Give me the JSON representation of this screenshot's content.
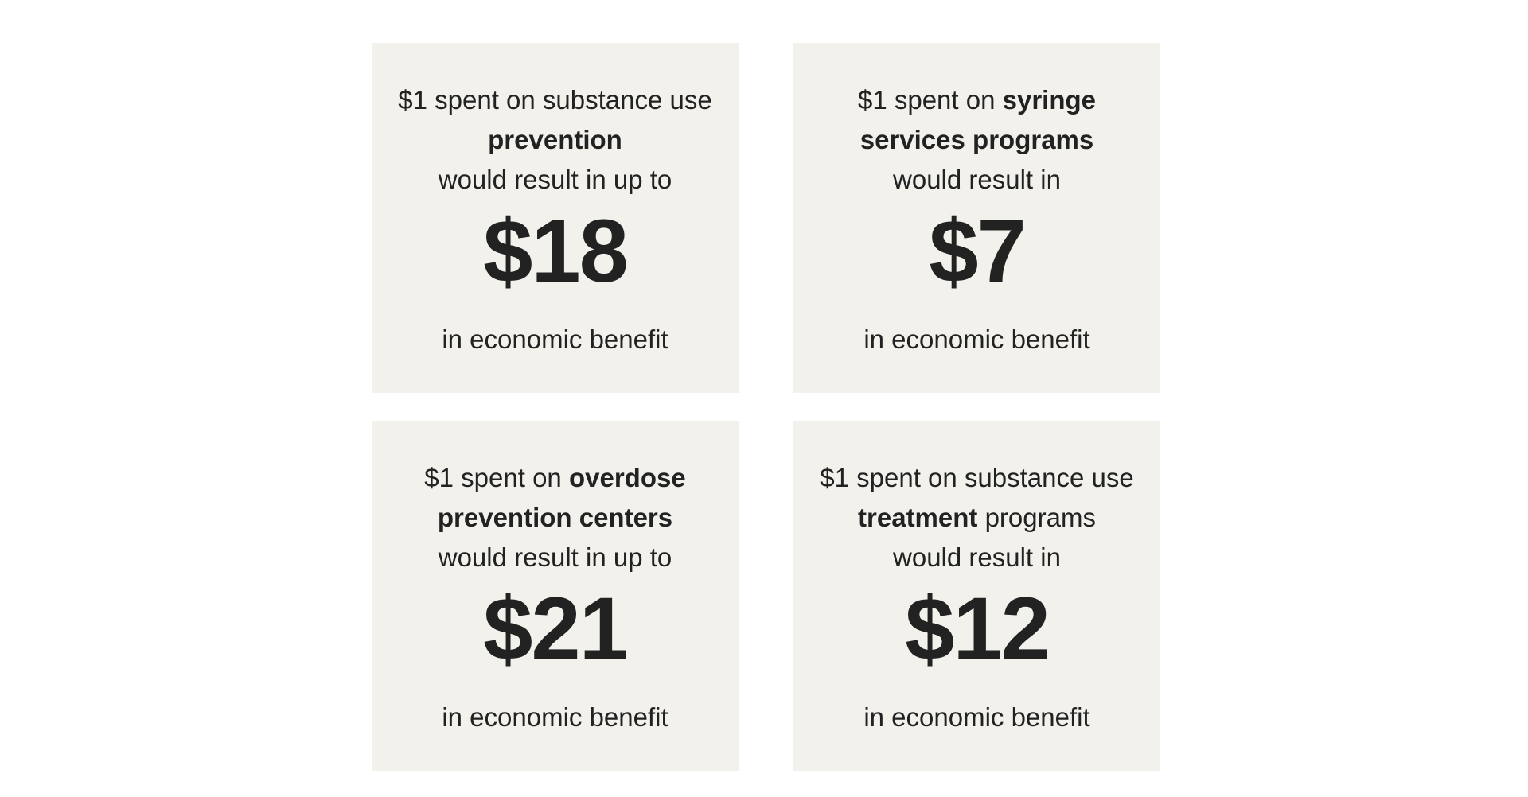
{
  "cards": [
    {
      "lines": [
        [
          {
            "text": "$1 spent on substance use",
            "bold": false
          }
        ],
        [
          {
            "text": "prevention",
            "bold": true
          }
        ],
        [
          {
            "text": "would result in up to",
            "bold": false
          }
        ]
      ],
      "amount": "$18",
      "footer": "in economic benefit"
    },
    {
      "lines": [
        [
          {
            "text": "$1 spent on ",
            "bold": false
          },
          {
            "text": "syringe",
            "bold": true
          }
        ],
        [
          {
            "text": "services programs",
            "bold": true
          }
        ],
        [
          {
            "text": "would result in",
            "bold": false
          }
        ]
      ],
      "amount": "$7",
      "footer": "in economic benefit"
    },
    {
      "lines": [
        [
          {
            "text": "$1 spent on ",
            "bold": false
          },
          {
            "text": "overdose",
            "bold": true
          }
        ],
        [
          {
            "text": "prevention centers",
            "bold": true
          }
        ],
        [
          {
            "text": "would result in up to",
            "bold": false
          }
        ]
      ],
      "amount": "$21",
      "footer": "in economic benefit"
    },
    {
      "lines": [
        [
          {
            "text": "$1 spent on substance use",
            "bold": false
          }
        ],
        [
          {
            "text": "treatment",
            "bold": true
          },
          {
            "text": " programs",
            "bold": false
          }
        ],
        [
          {
            "text": "would result in",
            "bold": false
          }
        ]
      ],
      "amount": "$12",
      "footer": "in economic benefit"
    }
  ]
}
